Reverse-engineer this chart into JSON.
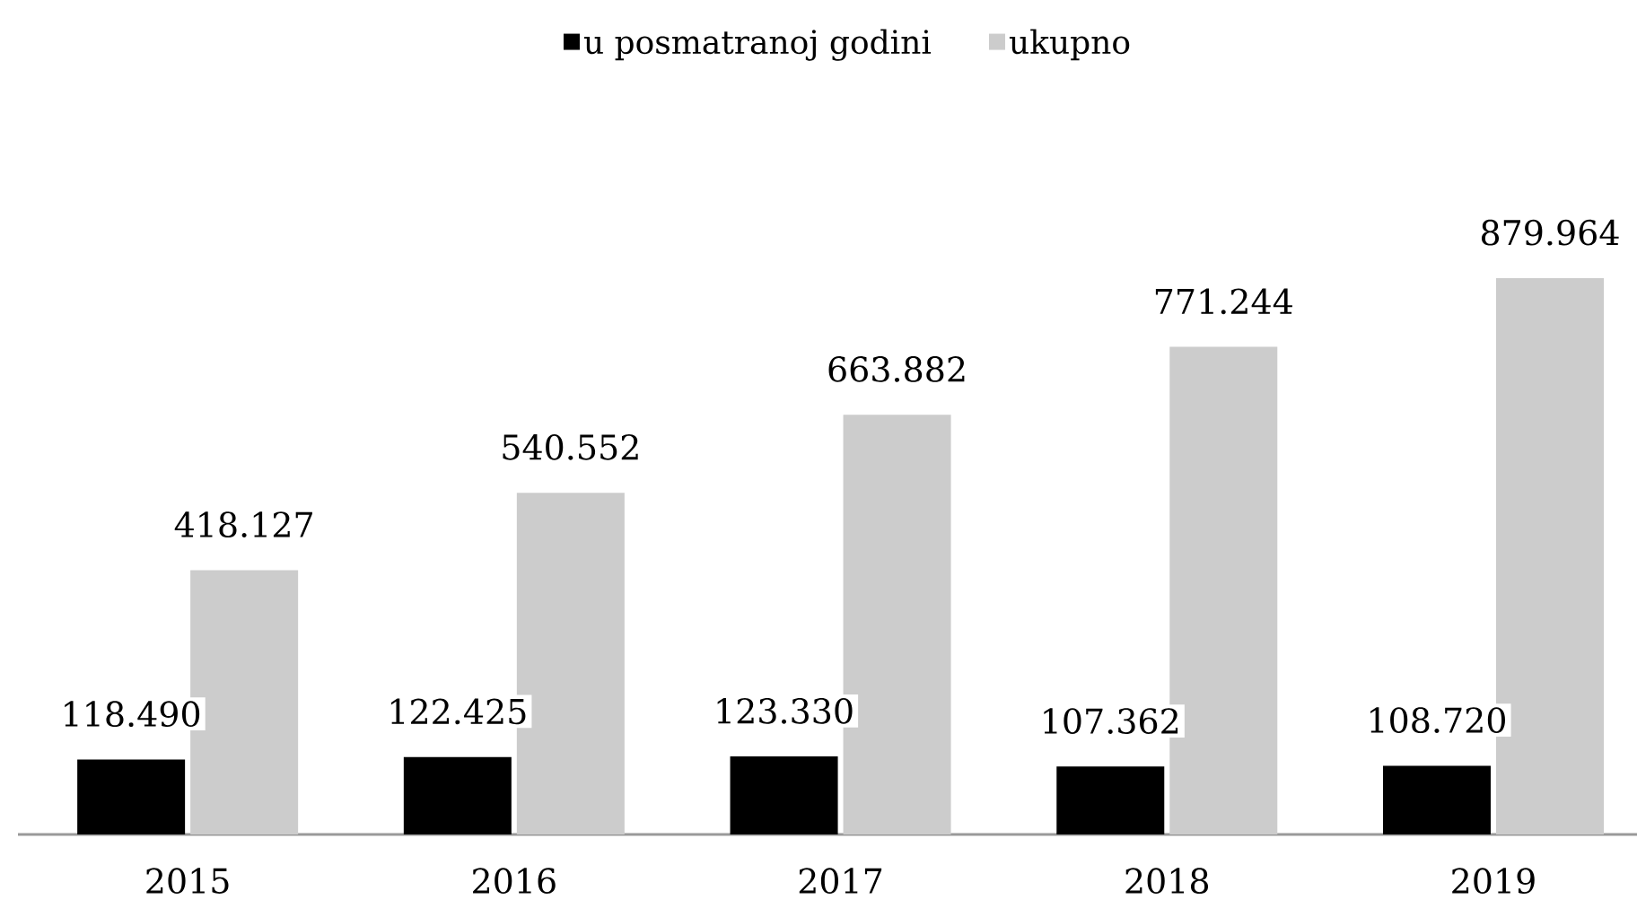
{
  "chart_data": {
    "type": "bar",
    "categories": [
      "2015",
      "2016",
      "2017",
      "2018",
      "2019"
    ],
    "series": [
      {
        "name": "u posmatranoj godini",
        "color": "#000000",
        "values": [
          118490,
          122425,
          123330,
          107362,
          108720
        ],
        "value_labels": [
          "118.490",
          "122.425",
          "123.330",
          "107.362",
          "108.720"
        ]
      },
      {
        "name": "ukupno",
        "color": "#cccccc",
        "values": [
          418127,
          540552,
          663882,
          771244,
          879964
        ],
        "value_labels": [
          "418.127",
          "540.552",
          "663.882",
          "771.244",
          "879.964"
        ]
      }
    ],
    "legend": "top"
  }
}
